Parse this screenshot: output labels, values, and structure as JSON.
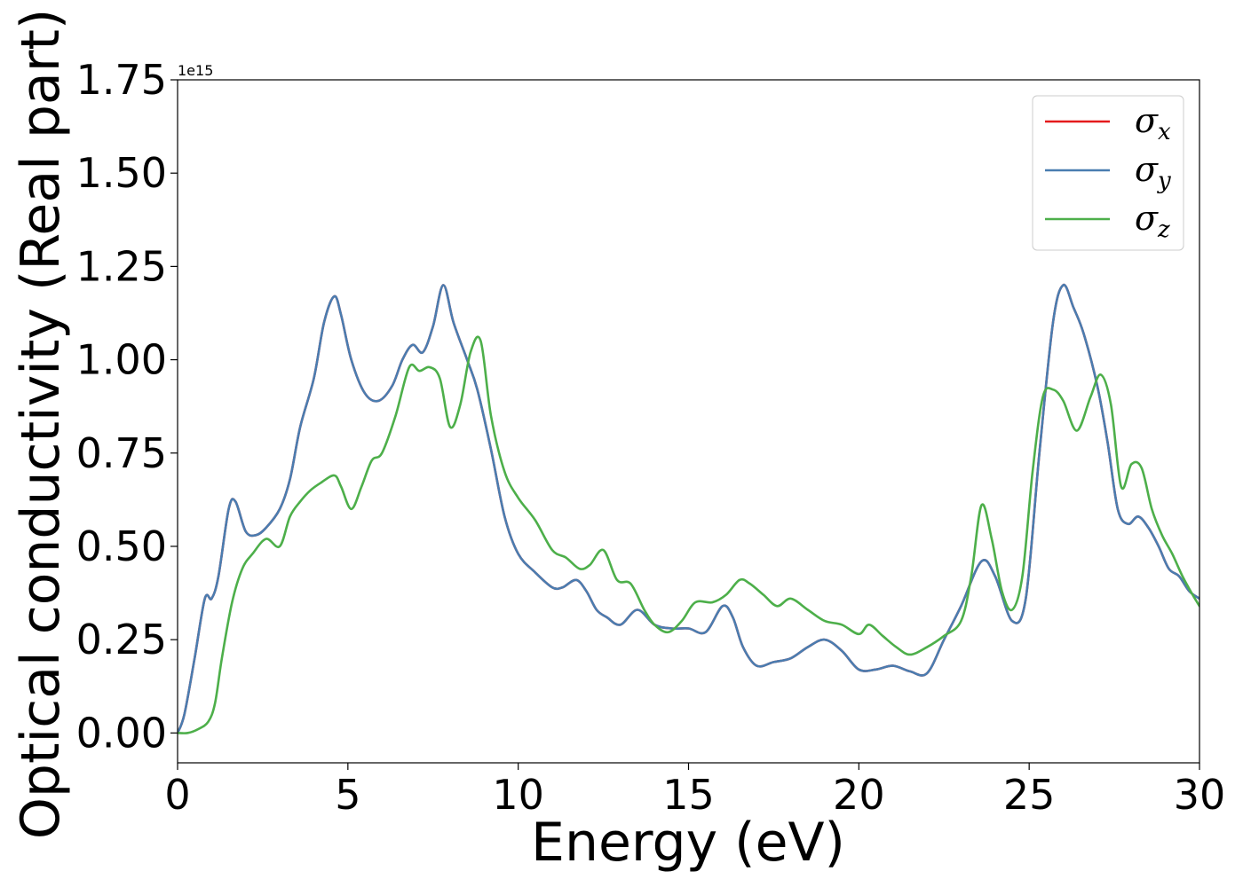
{
  "chart_data": {
    "type": "line",
    "xlabel": "Energy (eV)",
    "ylabel": "Optical conductivity (Real part)",
    "y_offset_label": "1e15",
    "xlim": [
      0,
      30
    ],
    "ylim": [
      -0.08,
      1.75
    ],
    "x_ticks": [
      0,
      5,
      10,
      15,
      20,
      25,
      30
    ],
    "x_tick_labels": [
      "0",
      "5",
      "10",
      "15",
      "20",
      "25",
      "30"
    ],
    "y_ticks": [
      0.0,
      0.25,
      0.5,
      0.75,
      1.0,
      1.25,
      1.5,
      1.75
    ],
    "y_tick_labels": [
      "0.00",
      "0.25",
      "0.50",
      "0.75",
      "1.00",
      "1.25",
      "1.50",
      "1.75"
    ],
    "grid": false,
    "legend_position": "top-right",
    "series": [
      {
        "name": "σx",
        "legend_symbol": "σ",
        "legend_sub": "x",
        "color": "#e41a1c",
        "x": [
          0,
          0.2,
          0.5,
          0.8,
          1.0,
          1.2,
          1.5,
          1.7,
          2.0,
          2.3,
          2.6,
          3.0,
          3.3,
          3.6,
          4.0,
          4.3,
          4.6,
          4.8,
          5.1,
          5.5,
          5.9,
          6.3,
          6.6,
          6.9,
          7.2,
          7.5,
          7.8,
          8.1,
          8.5,
          8.8,
          9.2,
          9.6,
          10.0,
          10.5,
          11.0,
          11.3,
          11.7,
          12.0,
          12.3,
          12.6,
          13.0,
          13.5,
          14.0,
          14.5,
          15.0,
          15.5,
          16.0,
          16.3,
          16.6,
          17.0,
          17.5,
          18.0,
          18.5,
          19.0,
          19.5,
          20.0,
          20.5,
          21.0,
          21.5,
          22.0,
          22.5,
          23.0,
          23.6,
          24.0,
          24.5,
          24.9,
          25.3,
          25.7,
          26.0,
          26.3,
          26.6,
          27.0,
          27.3,
          27.6,
          27.9,
          28.2,
          28.5,
          28.8,
          29.1,
          29.4,
          29.7,
          30.0
        ],
        "y": [
          0.0,
          0.05,
          0.2,
          0.36,
          0.36,
          0.42,
          0.6,
          0.62,
          0.54,
          0.53,
          0.55,
          0.6,
          0.68,
          0.82,
          0.95,
          1.1,
          1.17,
          1.12,
          1.0,
          0.91,
          0.89,
          0.93,
          1.0,
          1.04,
          1.02,
          1.09,
          1.2,
          1.1,
          1.0,
          0.92,
          0.76,
          0.58,
          0.48,
          0.43,
          0.39,
          0.39,
          0.41,
          0.38,
          0.33,
          0.31,
          0.29,
          0.33,
          0.29,
          0.28,
          0.28,
          0.27,
          0.34,
          0.31,
          0.23,
          0.18,
          0.19,
          0.2,
          0.23,
          0.25,
          0.22,
          0.17,
          0.17,
          0.18,
          0.165,
          0.16,
          0.25,
          0.34,
          0.46,
          0.42,
          0.3,
          0.36,
          0.75,
          1.1,
          1.2,
          1.14,
          1.07,
          0.93,
          0.78,
          0.6,
          0.56,
          0.58,
          0.55,
          0.5,
          0.44,
          0.42,
          0.38,
          0.36
        ]
      },
      {
        "name": "σy",
        "legend_symbol": "σ",
        "legend_sub": "y",
        "color": "#4a7db0",
        "x": [
          0,
          0.2,
          0.5,
          0.8,
          1.0,
          1.2,
          1.5,
          1.7,
          2.0,
          2.3,
          2.6,
          3.0,
          3.3,
          3.6,
          4.0,
          4.3,
          4.6,
          4.8,
          5.1,
          5.5,
          5.9,
          6.3,
          6.6,
          6.9,
          7.2,
          7.5,
          7.8,
          8.1,
          8.5,
          8.8,
          9.2,
          9.6,
          10.0,
          10.5,
          11.0,
          11.3,
          11.7,
          12.0,
          12.3,
          12.6,
          13.0,
          13.5,
          14.0,
          14.5,
          15.0,
          15.5,
          16.0,
          16.3,
          16.6,
          17.0,
          17.5,
          18.0,
          18.5,
          19.0,
          19.5,
          20.0,
          20.5,
          21.0,
          21.5,
          22.0,
          22.5,
          23.0,
          23.6,
          24.0,
          24.5,
          24.9,
          25.3,
          25.7,
          26.0,
          26.3,
          26.6,
          27.0,
          27.3,
          27.6,
          27.9,
          28.2,
          28.5,
          28.8,
          29.1,
          29.4,
          29.7,
          30.0
        ],
        "y": [
          0.0,
          0.05,
          0.2,
          0.36,
          0.36,
          0.42,
          0.6,
          0.62,
          0.54,
          0.53,
          0.55,
          0.6,
          0.68,
          0.82,
          0.95,
          1.1,
          1.17,
          1.12,
          1.0,
          0.91,
          0.89,
          0.93,
          1.0,
          1.04,
          1.02,
          1.09,
          1.2,
          1.1,
          1.0,
          0.92,
          0.76,
          0.58,
          0.48,
          0.43,
          0.39,
          0.39,
          0.41,
          0.38,
          0.33,
          0.31,
          0.29,
          0.33,
          0.29,
          0.28,
          0.28,
          0.27,
          0.34,
          0.31,
          0.23,
          0.18,
          0.19,
          0.2,
          0.23,
          0.25,
          0.22,
          0.17,
          0.17,
          0.18,
          0.165,
          0.16,
          0.25,
          0.34,
          0.46,
          0.42,
          0.3,
          0.36,
          0.75,
          1.1,
          1.2,
          1.14,
          1.07,
          0.93,
          0.78,
          0.6,
          0.56,
          0.58,
          0.55,
          0.5,
          0.44,
          0.42,
          0.38,
          0.36
        ]
      },
      {
        "name": "σz",
        "legend_symbol": "σ",
        "legend_sub": "z",
        "color": "#4daf4a",
        "x": [
          0,
          0.3,
          0.6,
          0.9,
          1.1,
          1.3,
          1.6,
          1.9,
          2.2,
          2.6,
          3.0,
          3.3,
          3.6,
          3.9,
          4.2,
          4.6,
          4.8,
          5.1,
          5.4,
          5.7,
          6.0,
          6.4,
          6.8,
          7.1,
          7.4,
          7.7,
          8.0,
          8.3,
          8.6,
          8.9,
          9.2,
          9.6,
          10.0,
          10.5,
          11.0,
          11.4,
          11.8,
          12.1,
          12.5,
          12.9,
          13.3,
          13.7,
          14.0,
          14.4,
          14.8,
          15.2,
          15.7,
          16.1,
          16.5,
          16.8,
          17.2,
          17.6,
          18.0,
          18.5,
          19.0,
          19.5,
          20.0,
          20.3,
          20.7,
          21.1,
          21.5,
          22.0,
          22.5,
          23.0,
          23.3,
          23.6,
          23.9,
          24.2,
          24.5,
          24.8,
          25.1,
          25.4,
          25.7,
          26.0,
          26.4,
          26.8,
          27.1,
          27.4,
          27.7,
          28.0,
          28.3,
          28.6,
          28.9,
          29.2,
          29.5,
          29.8,
          30.0
        ],
        "y": [
          0.0,
          0.0,
          0.01,
          0.03,
          0.08,
          0.2,
          0.35,
          0.44,
          0.48,
          0.52,
          0.5,
          0.58,
          0.62,
          0.65,
          0.67,
          0.69,
          0.66,
          0.6,
          0.66,
          0.73,
          0.75,
          0.85,
          0.98,
          0.97,
          0.98,
          0.95,
          0.82,
          0.88,
          1.02,
          1.05,
          0.85,
          0.7,
          0.63,
          0.57,
          0.49,
          0.47,
          0.44,
          0.45,
          0.49,
          0.41,
          0.4,
          0.33,
          0.29,
          0.27,
          0.3,
          0.35,
          0.35,
          0.37,
          0.41,
          0.4,
          0.37,
          0.34,
          0.36,
          0.33,
          0.3,
          0.29,
          0.265,
          0.29,
          0.26,
          0.23,
          0.21,
          0.23,
          0.26,
          0.3,
          0.42,
          0.61,
          0.52,
          0.38,
          0.33,
          0.42,
          0.7,
          0.9,
          0.92,
          0.89,
          0.81,
          0.9,
          0.96,
          0.88,
          0.66,
          0.72,
          0.71,
          0.6,
          0.53,
          0.48,
          0.42,
          0.37,
          0.34
        ]
      }
    ]
  }
}
